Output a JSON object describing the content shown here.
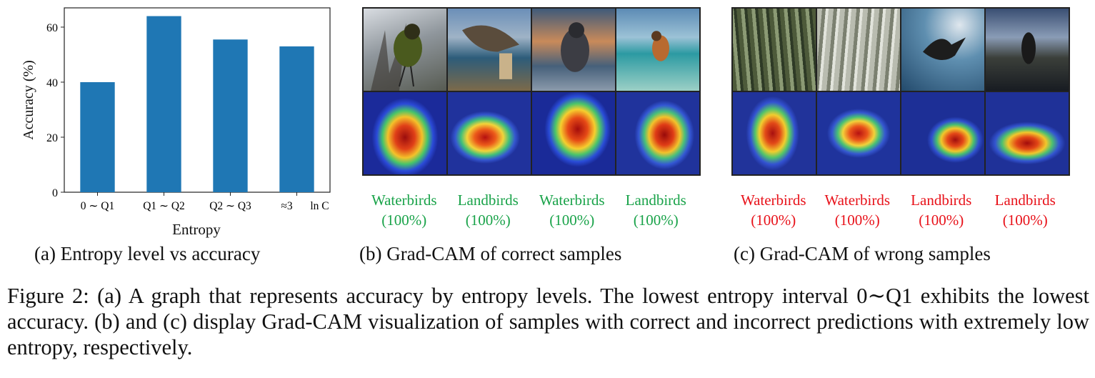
{
  "colors": {
    "bar": "#1f77b4",
    "correct_label": "#1aa34a",
    "wrong_label": "#e8121a"
  },
  "chart_data": {
    "type": "bar",
    "categories": [
      "0 ∼ Q1",
      "Q1 ∼ Q2",
      "Q2 ∼ Q3",
      "Q3 ∼ ln C"
    ],
    "category_labels_shown": [
      "0 ∼ Q1",
      "Q1 ∼ Q2",
      "Q2 ∼ Q3",
      "≈3",
      "ln C"
    ],
    "values": [
      40,
      64,
      55.5,
      53
    ],
    "xlabel": "Entropy",
    "ylabel": "Accuracy (%)",
    "ylim": [
      0,
      67
    ],
    "yticks": [
      0,
      20,
      40,
      60
    ],
    "grid": false
  },
  "subcaptions": {
    "a": "(a) Entropy level vs accuracy",
    "b": "(b) Grad-CAM of correct samples",
    "c": "(c) Grad-CAM of wrong samples"
  },
  "panel_b": {
    "labels": [
      {
        "name": "Waterbirds",
        "conf": "(100%)"
      },
      {
        "name": "Landbirds",
        "conf": "(100%)"
      },
      {
        "name": "Waterbirds",
        "conf": "(100%)"
      },
      {
        "name": "Landbirds",
        "conf": "(100%)"
      }
    ]
  },
  "panel_c": {
    "labels": [
      {
        "name": "Waterbirds",
        "conf": "(100%)"
      },
      {
        "name": "Waterbirds",
        "conf": "(100%)"
      },
      {
        "name": "Landbirds",
        "conf": "(100%)"
      },
      {
        "name": "Landbirds",
        "conf": "(100%)"
      }
    ]
  },
  "figure_caption": "Figure 2: (a) A graph that represents accuracy by entropy levels. The lowest entropy interval 0∼Q1 exhibits the lowest accuracy. (b) and (c) display Grad-CAM visualization of samples with correct and incorrect predictions with extremely low entropy, respectively."
}
